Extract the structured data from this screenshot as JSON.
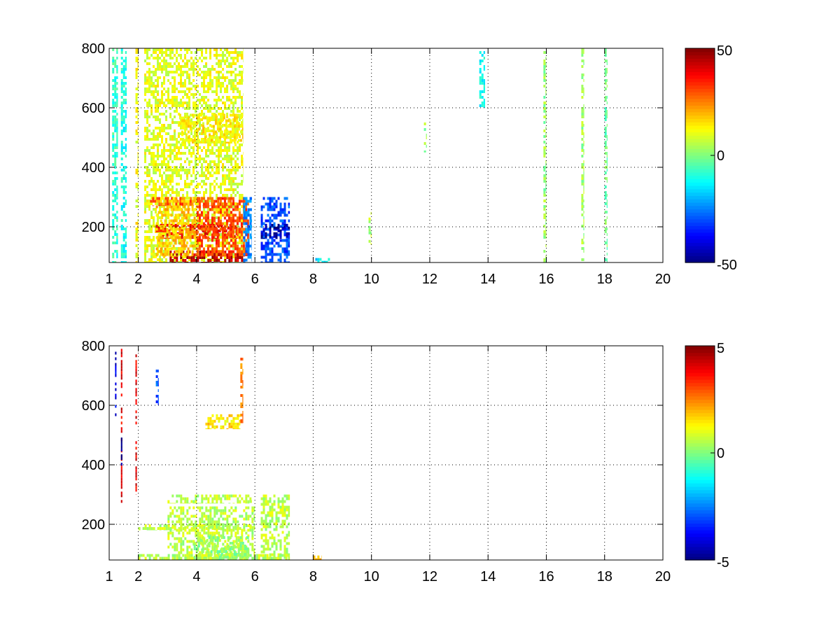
{
  "chart_data": [
    {
      "type": "heatmap",
      "title": "",
      "xlabel": "",
      "ylabel": "",
      "xlim": [
        1,
        20
      ],
      "ylim": [
        80,
        800
      ],
      "grid": true,
      "x_ticks": [
        1,
        2,
        4,
        6,
        8,
        10,
        12,
        14,
        16,
        18,
        20
      ],
      "x_tick_labels": [
        "1",
        "2",
        "4",
        "6",
        "8",
        "10",
        "12",
        "14",
        "16",
        "18",
        "20"
      ],
      "y_ticks": [
        200,
        400,
        600,
        800
      ],
      "y_tick_labels": [
        "200",
        "400",
        "600",
        "800"
      ],
      "colormap": "jet",
      "clim": [
        -50,
        50
      ],
      "colorbar_ticks": [
        50,
        0,
        -50
      ],
      "colorbar_tick_labels": [
        "50",
        "0",
        "-50"
      ],
      "regions": [
        {
          "x": [
            1.1,
            1.3
          ],
          "y": [
            80,
            800
          ],
          "value": -8
        },
        {
          "x": [
            1.4,
            1.6
          ],
          "y": [
            80,
            800
          ],
          "value": -10
        },
        {
          "x": [
            1.9,
            2.0
          ],
          "y": [
            80,
            800
          ],
          "value": 12
        },
        {
          "x": [
            2.2,
            5.6
          ],
          "y": [
            80,
            800
          ],
          "value": 10
        },
        {
          "x": [
            3.4,
            5.6
          ],
          "y": [
            480,
            580
          ],
          "value": 14
        },
        {
          "x": [
            3.0,
            5.8
          ],
          "y": [
            80,
            120
          ],
          "value": 44
        },
        {
          "x": [
            2.6,
            5.4
          ],
          "y": [
            160,
            210
          ],
          "value": 38
        },
        {
          "x": [
            2.4,
            5.2
          ],
          "y": [
            270,
            300
          ],
          "value": 30
        },
        {
          "x": [
            4.0,
            5.8
          ],
          "y": [
            100,
            300
          ],
          "value": 30
        },
        {
          "x": [
            2.6,
            4.0
          ],
          "y": [
            100,
            300
          ],
          "value": 18
        },
        {
          "x": [
            5.6,
            5.9
          ],
          "y": [
            80,
            300
          ],
          "value": -25
        },
        {
          "x": [
            6.2,
            7.2
          ],
          "y": [
            80,
            300
          ],
          "value": -30
        },
        {
          "x": [
            6.2,
            7.2
          ],
          "y": [
            160,
            210
          ],
          "value": -48
        },
        {
          "x": [
            8.0,
            8.6
          ],
          "y": [
            80,
            95
          ],
          "value": -15
        },
        {
          "x": [
            9.9,
            10.0
          ],
          "y": [
            140,
            250
          ],
          "value": 4
        },
        {
          "x": [
            11.8,
            11.9
          ],
          "y": [
            450,
            560
          ],
          "value": 3
        },
        {
          "x": [
            13.7,
            13.9
          ],
          "y": [
            600,
            800
          ],
          "value": -12
        },
        {
          "x": [
            15.9,
            16.0
          ],
          "y": [
            80,
            800
          ],
          "value": 2
        },
        {
          "x": [
            17.2,
            17.3
          ],
          "y": [
            80,
            800
          ],
          "value": 3
        },
        {
          "x": [
            18.0,
            18.1
          ],
          "y": [
            80,
            800
          ],
          "value": -2
        }
      ]
    },
    {
      "type": "heatmap",
      "title": "",
      "xlabel": "",
      "ylabel": "",
      "xlim": [
        1,
        20
      ],
      "ylim": [
        80,
        800
      ],
      "grid": true,
      "x_ticks": [
        1,
        2,
        4,
        6,
        8,
        10,
        12,
        14,
        16,
        18,
        20
      ],
      "x_tick_labels": [
        "1",
        "2",
        "4",
        "6",
        "8",
        "10",
        "12",
        "14",
        "16",
        "18",
        "20"
      ],
      "y_ticks": [
        200,
        400,
        600,
        800
      ],
      "y_tick_labels": [
        "200",
        "400",
        "600",
        "800"
      ],
      "colormap": "jet",
      "clim": [
        -5,
        5
      ],
      "colorbar_ticks": [
        5,
        0,
        -5
      ],
      "colorbar_tick_labels": [
        "5",
        "0",
        "-5"
      ],
      "regions": [
        {
          "x": [
            1.2,
            1.25
          ],
          "y": [
            550,
            780
          ],
          "value": -4
        },
        {
          "x": [
            1.4,
            1.45
          ],
          "y": [
            260,
            790
          ],
          "value": 4
        },
        {
          "x": [
            1.4,
            1.45
          ],
          "y": [
            380,
            520
          ],
          "value": -5
        },
        {
          "x": [
            1.9,
            1.95
          ],
          "y": [
            300,
            790
          ],
          "value": 4
        },
        {
          "x": [
            2.6,
            2.7
          ],
          "y": [
            600,
            720
          ],
          "value": -3
        },
        {
          "x": [
            4.3,
            5.5
          ],
          "y": [
            520,
            570
          ],
          "value": 1.5
        },
        {
          "x": [
            5.5,
            5.6
          ],
          "y": [
            540,
            760
          ],
          "value": 2.5
        },
        {
          "x": [
            3.0,
            5.9
          ],
          "y": [
            270,
            300
          ],
          "value": 0.6
        },
        {
          "x": [
            2.0,
            6.0
          ],
          "y": [
            180,
            200
          ],
          "value": 0.6
        },
        {
          "x": [
            3.0,
            6.0
          ],
          "y": [
            80,
            260
          ],
          "value": 0.6
        },
        {
          "x": [
            3.9,
            5.8
          ],
          "y": [
            80,
            160
          ],
          "value": 0.2
        },
        {
          "x": [
            6.2,
            7.2
          ],
          "y": [
            80,
            300
          ],
          "value": 0.6
        },
        {
          "x": [
            2.0,
            7.2
          ],
          "y": [
            80,
            100
          ],
          "value": 0.6
        },
        {
          "x": [
            8.0,
            8.3
          ],
          "y": [
            80,
            95
          ],
          "value": 2
        }
      ]
    }
  ]
}
